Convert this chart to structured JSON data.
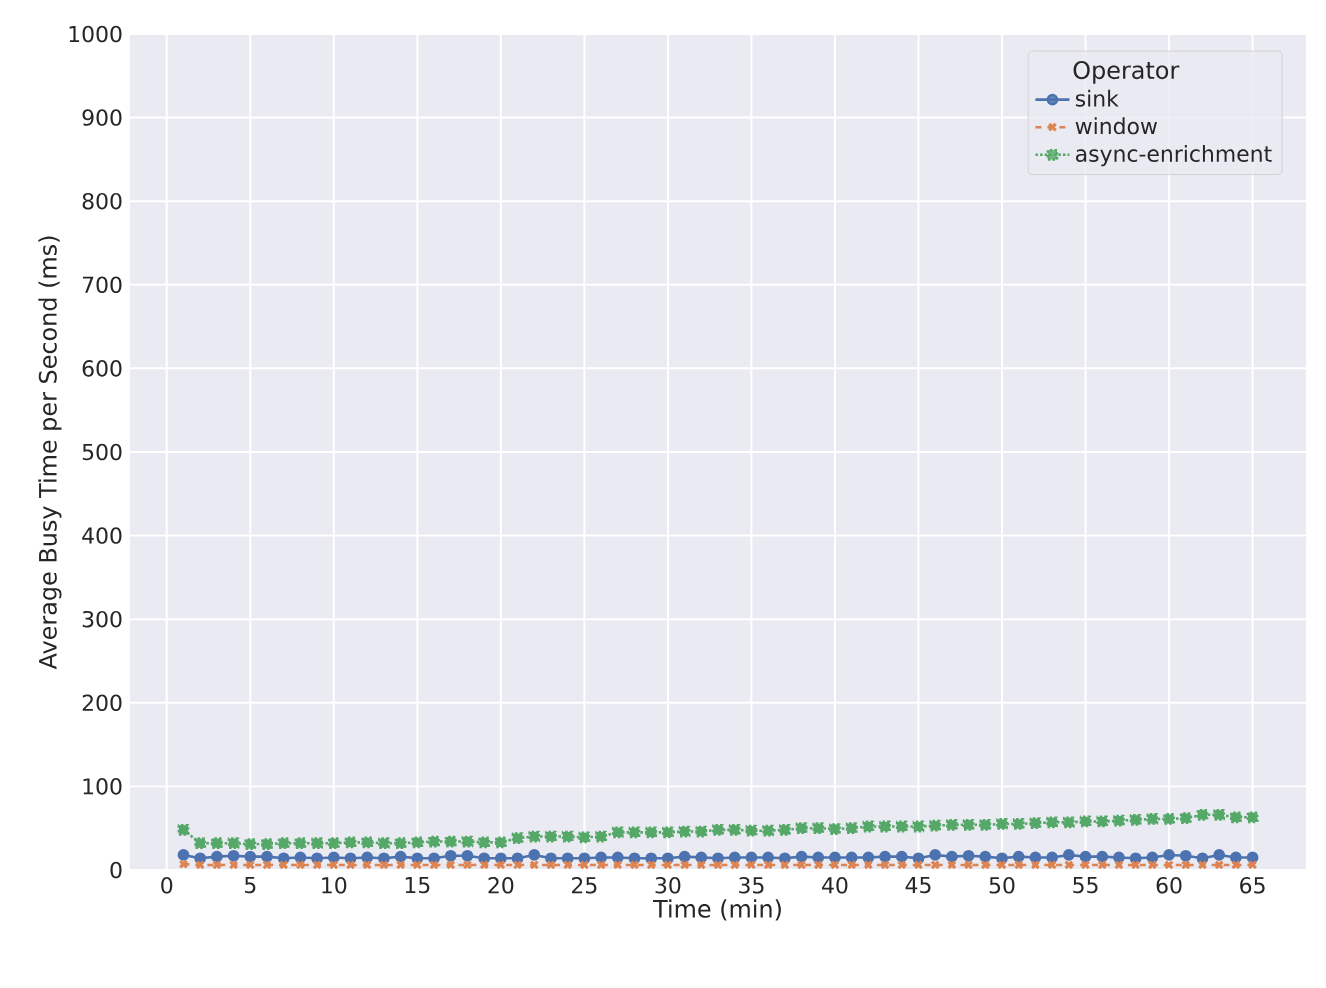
{
  "chart_data": {
    "type": "line",
    "xlabel": "Time (min)",
    "ylabel": "Average Busy Time per Second (ms)",
    "legend_title": "Operator",
    "legend": "top right",
    "grid": true,
    "x": [
      1,
      2,
      3,
      4,
      5,
      6,
      7,
      8,
      9,
      10,
      11,
      12,
      13,
      14,
      15,
      16,
      17,
      18,
      19,
      20,
      21,
      22,
      23,
      24,
      25,
      26,
      27,
      28,
      29,
      30,
      31,
      32,
      33,
      34,
      35,
      36,
      37,
      38,
      39,
      40,
      41,
      42,
      43,
      44,
      45,
      46,
      47,
      48,
      49,
      50,
      51,
      52,
      53,
      54,
      55,
      56,
      57,
      58,
      59,
      60,
      61,
      62,
      63,
      64,
      65
    ],
    "xlim": [
      -2.2,
      68.2
    ],
    "ylim": [
      0,
      1000
    ],
    "xticks": [
      0,
      5,
      10,
      15,
      20,
      25,
      30,
      35,
      40,
      45,
      50,
      55,
      60,
      65
    ],
    "yticks": [
      0,
      100,
      200,
      300,
      400,
      500,
      600,
      700,
      800,
      900,
      1000
    ],
    "series": [
      {
        "name": "sink",
        "color": "#4c72b0",
        "marker": "circle",
        "line_style": "solid",
        "values": [
          18,
          14,
          16,
          17,
          16,
          16,
          14,
          15,
          14,
          15,
          14,
          15,
          14,
          16,
          14,
          14,
          17,
          17,
          14,
          14,
          14,
          18,
          14,
          14,
          14,
          15,
          15,
          14,
          14,
          14,
          16,
          15,
          14,
          15,
          15,
          15,
          14,
          16,
          15,
          15,
          15,
          15,
          16,
          16,
          14,
          18,
          16,
          17,
          16,
          14,
          16,
          15,
          15,
          18,
          16,
          16,
          15,
          14,
          15,
          18,
          17,
          14,
          18,
          15,
          15
        ]
      },
      {
        "name": "window",
        "color": "#dd8452",
        "marker": "cross",
        "line_style": "dashed",
        "values": [
          7,
          6,
          6,
          6,
          6,
          6,
          6,
          6,
          6,
          6,
          6,
          6,
          6,
          6,
          6,
          6,
          6,
          6,
          6,
          6,
          6,
          6,
          6,
          6,
          6,
          6,
          6,
          6,
          6,
          6,
          6,
          6,
          6,
          6,
          6,
          6,
          6,
          6,
          6,
          6,
          6,
          6,
          6,
          6,
          6,
          6,
          6,
          6,
          6,
          6,
          6,
          6,
          6,
          6,
          6,
          6,
          6,
          6,
          6,
          6,
          6,
          6,
          6,
          6,
          6
        ]
      },
      {
        "name": "async-enrichment",
        "color": "#55a868",
        "marker": "square",
        "line_style": "dotted",
        "values": [
          48,
          32,
          32,
          32,
          31,
          31,
          32,
          32,
          32,
          32,
          33,
          33,
          32,
          32,
          33,
          34,
          34,
          34,
          33,
          33,
          38,
          40,
          40,
          40,
          39,
          40,
          45,
          45,
          45,
          45,
          46,
          46,
          48,
          48,
          47,
          47,
          48,
          50,
          50,
          49,
          50,
          52,
          52,
          52,
          52,
          53,
          54,
          54,
          54,
          55,
          55,
          56,
          57,
          57,
          58,
          58,
          59,
          60,
          61,
          61,
          62,
          66,
          66,
          63,
          63
        ]
      }
    ]
  }
}
